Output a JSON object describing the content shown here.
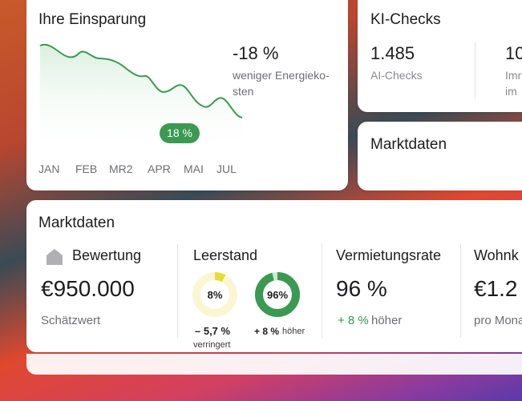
{
  "savings": {
    "title": "Ihre Einsparung",
    "value": "-18 %",
    "desc_line1": "weniger Energieko-",
    "desc_line2": "sten",
    "badge": "18 %",
    "months": [
      "JAN",
      "FEB",
      "MR2",
      "APR",
      "MAI",
      "JUL"
    ]
  },
  "ki": {
    "title": "KI-Checks",
    "value": "1.485",
    "label": "AI-Checks",
    "value2": "10",
    "label2_line1": "Imr",
    "label2_line2": "im"
  },
  "market_small": {
    "title": "Marktdaten"
  },
  "market": {
    "title": "Marktdaten",
    "valuation": {
      "label": "Bewertung",
      "icon": "house-icon",
      "value": "€950.000",
      "sub": "Schätzwert"
    },
    "vacancy": {
      "label": "Leerstand",
      "donut1": {
        "label": "8%",
        "value": 8,
        "color": "#e5dc3c",
        "track": "#fbf6d2"
      },
      "donut2": {
        "label": "96%",
        "value": 96,
        "color": "#3a9a52",
        "track": "#cfe9d4"
      },
      "change1": "– 5,7 %",
      "change1_sub": "verringert",
      "change2_value": "+ 8 %",
      "change2_text": "höher"
    },
    "rental": {
      "label": "Vermietungsrate",
      "value": "96 %",
      "change_value": "+ 8 %",
      "change_text": "höher"
    },
    "living": {
      "label": "Wohnk",
      "value": "€1.2",
      "sub": "pro Mona"
    }
  }
}
